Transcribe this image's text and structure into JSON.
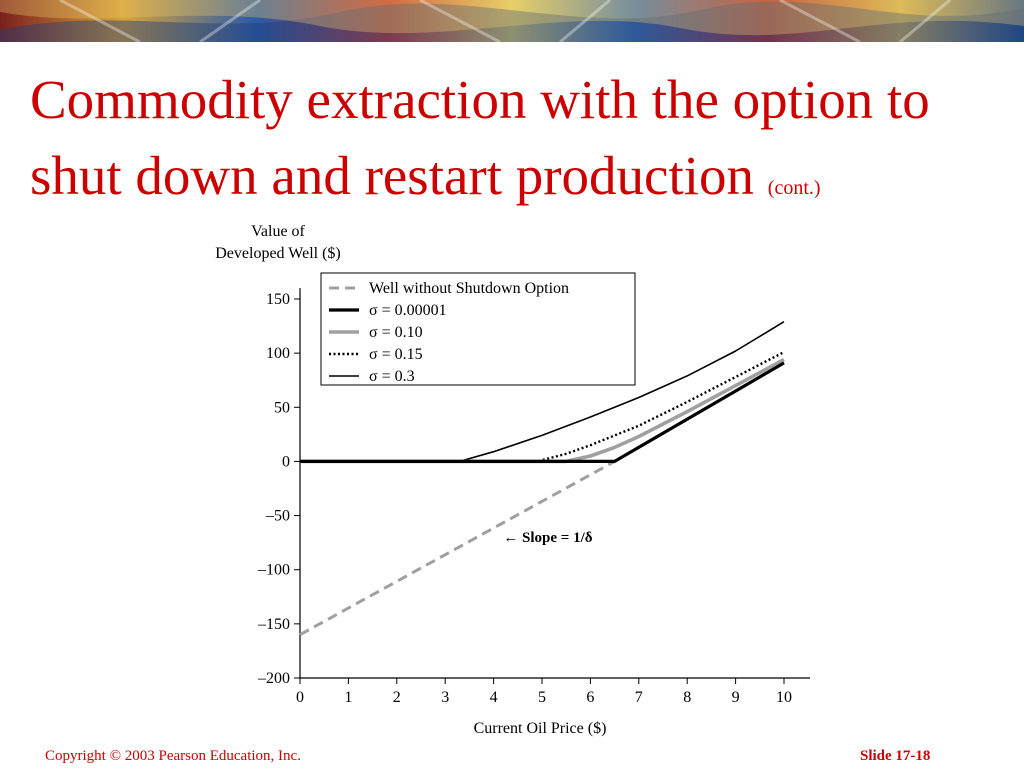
{
  "slide": {
    "title_main": "Commodity extraction with the option to shut down and restart production",
    "title_suffix": "(cont.)",
    "copyright": "Copyright © 2003 Pearson Education, Inc.",
    "slide_number": "Slide 17-18"
  },
  "colors": {
    "title": "#cc0000",
    "footer": "#cc0000",
    "dashed_series": "#a0a0a0",
    "gray_series": "#a0a0a0",
    "black_series": "#000000"
  },
  "chart_data": {
    "type": "line",
    "ylabel_line1": "Value of",
    "ylabel_line2": "Developed Well ($)",
    "xlabel": "Current Oil Price ($)",
    "xlim": [
      0,
      10
    ],
    "ylim": [
      -200,
      150
    ],
    "x_ticks": [
      "0",
      "1",
      "2",
      "3",
      "4",
      "5",
      "6",
      "7",
      "8",
      "9",
      "10"
    ],
    "y_ticks": [
      "150",
      "100",
      "50",
      "0",
      "–50",
      "–100",
      "–150",
      "–200"
    ],
    "y_tick_values": [
      150,
      100,
      50,
      0,
      -50,
      -100,
      -150,
      -200
    ],
    "grid": false,
    "legend_position": "top-left",
    "annotation": {
      "text": "← Slope = 1/δ",
      "x": 4.2,
      "y": -70
    },
    "series": [
      {
        "name": "Well without Shutdown Option",
        "style": "dashed-gray",
        "points": [
          [
            0,
            -160
          ],
          [
            6.5,
            0
          ]
        ]
      },
      {
        "name": "σ = 0.00001",
        "style": "solid-black-thick",
        "points": [
          [
            0,
            0
          ],
          [
            6.5,
            0
          ],
          [
            10,
            91
          ]
        ]
      },
      {
        "name": "σ = 0.10",
        "style": "solid-gray-thick",
        "points": [
          [
            0,
            0
          ],
          [
            5.5,
            0
          ],
          [
            6,
            5
          ],
          [
            6.5,
            13
          ],
          [
            7,
            23
          ],
          [
            8,
            46
          ],
          [
            9,
            70
          ],
          [
            10,
            94
          ]
        ]
      },
      {
        "name": "σ = 0.15",
        "style": "dotted-black",
        "points": [
          [
            0,
            0
          ],
          [
            4.9,
            0
          ],
          [
            5.5,
            7
          ],
          [
            6,
            15
          ],
          [
            7,
            33
          ],
          [
            8,
            55
          ],
          [
            9,
            78
          ],
          [
            10,
            101
          ]
        ]
      },
      {
        "name": "σ = 0.3",
        "style": "solid-black-thin",
        "points": [
          [
            0,
            0
          ],
          [
            3.3,
            0
          ],
          [
            4,
            9
          ],
          [
            5,
            24
          ],
          [
            6,
            41
          ],
          [
            7,
            59
          ],
          [
            8,
            79
          ],
          [
            9,
            102
          ],
          [
            10,
            129
          ]
        ]
      }
    ]
  }
}
